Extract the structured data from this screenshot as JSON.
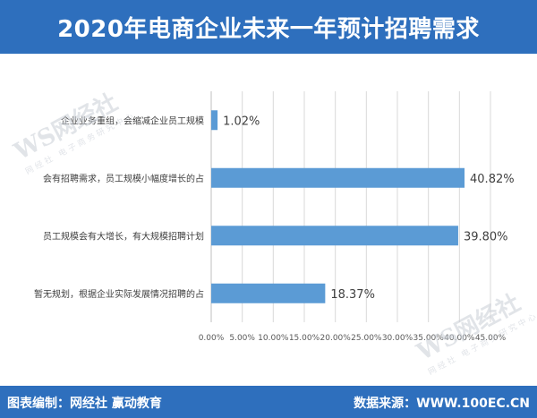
{
  "header": {
    "title": "2020年电商企业未来一年预计招聘需求"
  },
  "footer": {
    "source_left": "图表编制：网经社  赢动教育",
    "source_right": "数据来源：WWW.100EC.CN"
  },
  "watermark": {
    "logo": "WS网经社",
    "sub": "网经社 电子商务研究中心"
  },
  "colors": {
    "header_bg": "#2e6fbd",
    "bar": "#5b9bd5",
    "grid": "#d9d9d9"
  },
  "chart_data": {
    "type": "bar",
    "orientation": "horizontal",
    "categories": [
      "企业业务重组，会缩减企业员工规模",
      "会有招聘需求，员工规模小幅度增长的占",
      "员工规模会有大增长，有大规模招聘计划",
      "暂无规划，根据企业实际发展情况招聘的占"
    ],
    "values": [
      1.02,
      40.82,
      39.8,
      18.37
    ],
    "value_labels": [
      "1.02%",
      "40.82%",
      "39.80%",
      "18.37%"
    ],
    "x_ticks": [
      0,
      5,
      10,
      15,
      20,
      25,
      30,
      35,
      40,
      45
    ],
    "x_tick_labels": [
      "0.00%",
      "5.00%",
      "10.00%",
      "15.00%",
      "20.00%",
      "25.00%",
      "30.00%",
      "35.00%",
      "40.00%",
      "45.00%"
    ],
    "xlim": [
      0,
      45
    ],
    "grid": true,
    "legend": "none"
  }
}
